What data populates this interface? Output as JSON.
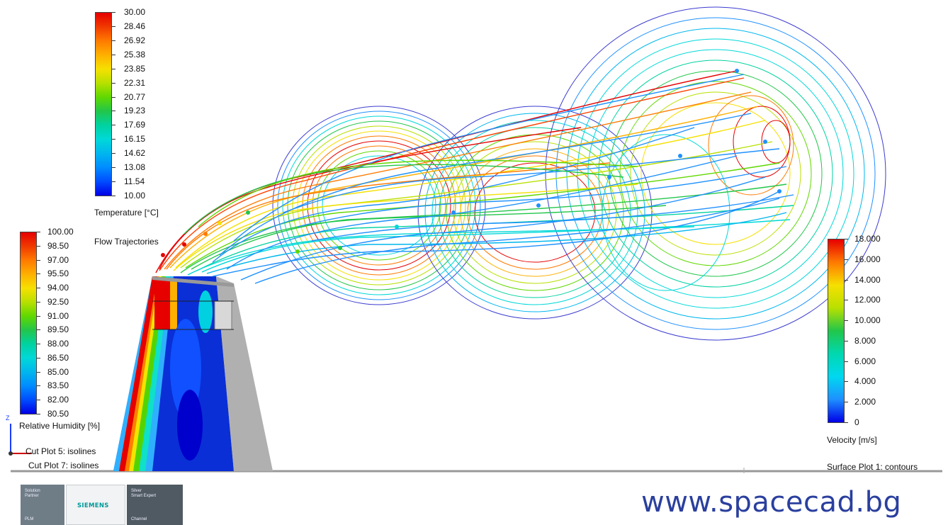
{
  "temperature_legend": {
    "title": "Temperature [°C]",
    "values": [
      "30.00",
      "28.46",
      "26.92",
      "25.38",
      "23.85",
      "22.31",
      "20.77",
      "19.23",
      "17.69",
      "16.15",
      "14.62",
      "13.08",
      "11.54",
      "10.00"
    ],
    "colors": [
      "#e60000",
      "#f03a00",
      "#ff7a00",
      "#ffb000",
      "#f6e000",
      "#b8e000",
      "#60d800",
      "#22c64a",
      "#00d2a0",
      "#00d8d8",
      "#00b6ee",
      "#008cff",
      "#004cff",
      "#0000e6"
    ]
  },
  "humidity_legend": {
    "title": "Relative Humidity [%]",
    "values": [
      "100.00",
      "98.50",
      "97.00",
      "95.50",
      "94.00",
      "92.50",
      "91.00",
      "89.50",
      "88.00",
      "86.50",
      "85.00",
      "83.50",
      "82.00",
      "80.50"
    ],
    "colors": [
      "#e60000",
      "#f03a00",
      "#ff7a00",
      "#ffb000",
      "#f6e000",
      "#b8e000",
      "#60d800",
      "#22c64a",
      "#00d2a0",
      "#00d8d8",
      "#00b6ee",
      "#008cff",
      "#004cff",
      "#0000e6"
    ]
  },
  "velocity_legend": {
    "title": "Velocity [m/s]",
    "values": [
      "18.000",
      "16.000",
      "14.000",
      "12.000",
      "10.000",
      "8.000",
      "6.000",
      "4.000",
      "2.000",
      "0"
    ],
    "colors": [
      "#e60000",
      "#ff7a00",
      "#f6e000",
      "#b8e000",
      "#22c64a",
      "#00d8b0",
      "#00d8f0",
      "#1e90ff",
      "#0000e6"
    ]
  },
  "labels": {
    "flow_trajectories": "Flow Trajectories",
    "cut_plot_5": "Cut Plot 5: isolines",
    "cut_plot_7": "Cut Plot 7: isolines",
    "surface_plot": "Surface Plot 1: contours",
    "axis_z": "Z"
  },
  "footer": {
    "badge1_line1": "Solution",
    "badge1_line2": "Partner",
    "badge1_line3": "PLM",
    "badge2_text": "SIEMENS",
    "badge3_line1": "Silver",
    "badge3_line2": "Smart Expert",
    "badge3_line3": "Channel",
    "url": "www.spacecad.bg"
  },
  "colors": {
    "url_blue": "#2a3f9e",
    "badge_gray": "#6f7d87",
    "badge_dark": "#4f5a62",
    "siemens_teal": "#009999"
  }
}
